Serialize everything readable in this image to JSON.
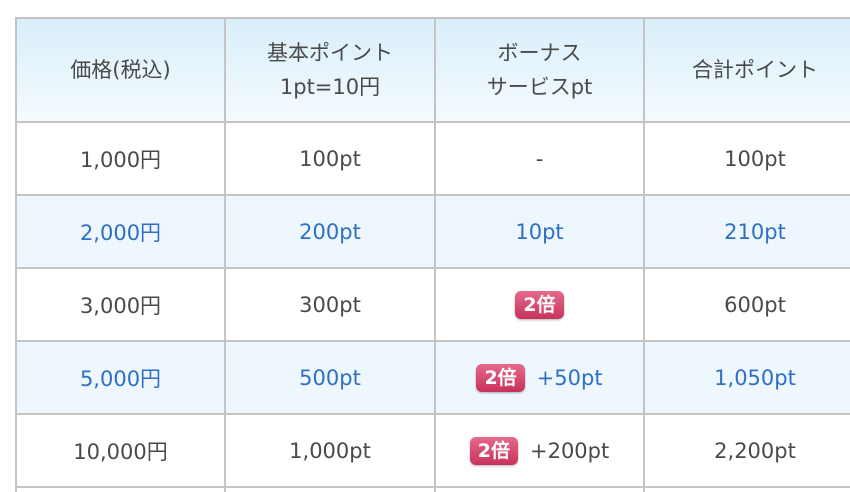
{
  "headers": [
    "価格(税込)",
    "基本ポイント\n1pt=10円",
    "ボーナス\nサービスpt",
    "合計ポイント"
  ],
  "rows": [
    {
      "price": "1,000円",
      "base": "100pt",
      "bonus": "-",
      "badge": "",
      "extra": "",
      "total": "100pt"
    },
    {
      "price": "2,000円",
      "base": "200pt",
      "bonus": "10pt",
      "badge": "",
      "extra": "",
      "total": "210pt"
    },
    {
      "price": "3,000円",
      "base": "300pt",
      "bonus": "",
      "badge": "2倍",
      "extra": "",
      "total": "600pt"
    },
    {
      "price": "5,000円",
      "base": "500pt",
      "bonus": "",
      "badge": "2倍",
      "extra": "+50pt",
      "total": "1,050pt"
    },
    {
      "price": "10,000円",
      "base": "1,000pt",
      "bonus": "",
      "badge": "2倍",
      "extra": "+200pt",
      "total": "2,200pt"
    }
  ],
  "colors": {
    "header_bg": "#d9eefa",
    "alt_row_bg": "#eef7fe",
    "alt_row_text": "#2f6fc4",
    "badge": "#d44a70",
    "border": "#c4c4c4"
  }
}
